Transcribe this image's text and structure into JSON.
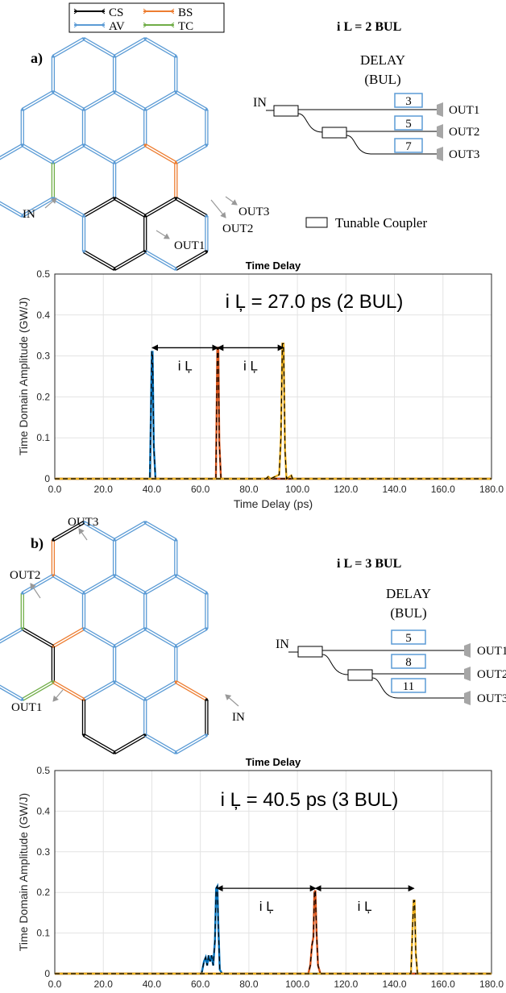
{
  "legend": {
    "items": [
      {
        "label": "CS",
        "color": "#000000"
      },
      {
        "label": "BS",
        "color": "#ED7D31"
      },
      {
        "label": "AV",
        "color": "#5B9BD5"
      },
      {
        "label": "TC",
        "color": "#70AD47"
      }
    ]
  },
  "panel_a": {
    "label": "a)",
    "delay_title": "i L = 2 BUL",
    "delay_header": "DELAY",
    "delay_unit": "(BUL)",
    "input_label": "IN",
    "delays": [
      "3",
      "5",
      "7"
    ],
    "outputs": [
      "OUT1",
      "OUT2",
      "OUT3"
    ],
    "mesh_labels": {
      "in": "IN",
      "out1": "OUT1",
      "out2": "OUT2",
      "out3": "OUT3"
    },
    "coupler_legend": "Tunable Coupler"
  },
  "panel_b": {
    "label": "b)",
    "delay_title": "i L = 3 BUL",
    "delay_header": "DELAY",
    "delay_unit": "(BUL)",
    "input_label": "IN",
    "delays": [
      "5",
      "8",
      "11"
    ],
    "outputs": [
      "OUT1",
      "OUT2",
      "OUT3"
    ],
    "mesh_labels": {
      "in": "IN",
      "out1": "OUT1",
      "out2": "OUT2",
      "out3": "OUT3"
    }
  },
  "colors": {
    "blue": "#0072BD",
    "orange": "#D95319",
    "yellow": "#EDB120",
    "mesh_blue": "#5B9BD5",
    "mesh_orange": "#ED7D31",
    "mesh_green": "#70AD47",
    "box_blue": "#5B9BD5"
  },
  "chart_data": [
    {
      "type": "line",
      "title": "Time Delay",
      "xlabel": "Time Delay (ps)",
      "ylabel": "Time Domain Amplitude (GW/J)",
      "xlim": [
        0,
        180
      ],
      "ylim": [
        0,
        0.5
      ],
      "xticks": [
        "0.0",
        "20.0",
        "40.0",
        "60.0",
        "80.0",
        "100.0",
        "120.0",
        "140.0",
        "160.0",
        "180.0"
      ],
      "yticks": [
        "0",
        "0.1",
        "0.2",
        "0.3",
        "0.4",
        "0.5"
      ],
      "grid": true,
      "annotation": "i Ļ = 27.0 ps (2 BUL)",
      "interval_labels": [
        "i Ļ",
        "i Ļ"
      ],
      "arrows": [
        [
          40.2,
          67.2,
          0.32
        ],
        [
          67.2,
          94.2,
          0.32
        ]
      ],
      "series": [
        {
          "color": "blue",
          "points": [
            [
              39.2,
              0
            ],
            [
              40.0,
              0.31
            ],
            [
              40.3,
              0.31
            ],
            [
              40.8,
              0.08
            ],
            [
              41.5,
              0
            ]
          ]
        },
        {
          "color": "orange",
          "points": [
            [
              66.4,
              0
            ],
            [
              67.0,
              0.32
            ],
            [
              67.4,
              0.32
            ],
            [
              67.8,
              0.09
            ],
            [
              68.5,
              0
            ]
          ]
        },
        {
          "color": "yellow",
          "points": [
            [
              87.0,
              0
            ],
            [
              88.0,
              0.005
            ],
            [
              89.0,
              0
            ],
            [
              92.5,
              0.01
            ],
            [
              93.2,
              0.1
            ],
            [
              93.8,
              0.33
            ],
            [
              94.3,
              0.33
            ],
            [
              94.9,
              0.07
            ],
            [
              95.5,
              0
            ],
            [
              97.5,
              0.008
            ],
            [
              98.0,
              0
            ]
          ]
        }
      ]
    },
    {
      "type": "line",
      "title": "Time Delay",
      "xlabel": "Time Delay (ps)",
      "ylabel": "Time Domain Amplitude (GW/J)",
      "xlim": [
        0,
        180
      ],
      "ylim": [
        0,
        0.5
      ],
      "xticks": [
        "0.0",
        "20.0",
        "40.0",
        "60.0",
        "80.0",
        "100.0",
        "120.0",
        "140.0",
        "160.0",
        "180.0"
      ],
      "yticks": [
        "0",
        "0.1",
        "0.2",
        "0.3",
        "0.4",
        "0.5"
      ],
      "grid": true,
      "annotation": "i Ļ = 40.5 ps (3 BUL)",
      "interval_labels": [
        "i Ļ",
        "i Ļ"
      ],
      "arrows": [
        [
          67.0,
          107.5,
          0.21
        ],
        [
          107.5,
          148.0,
          0.21
        ]
      ],
      "series": [
        {
          "color": "blue",
          "points": [
            [
              60.5,
              0
            ],
            [
              61.5,
              0.03
            ],
            [
              62.2,
              0.04
            ],
            [
              62.8,
              0.02
            ],
            [
              63.4,
              0.045
            ],
            [
              64.0,
              0.03
            ],
            [
              64.6,
              0.045
            ],
            [
              65.3,
              0.02
            ],
            [
              66.0,
              0.08
            ],
            [
              66.5,
              0.21
            ],
            [
              67.0,
              0.215
            ],
            [
              67.4,
              0.12
            ],
            [
              68.0,
              0.01
            ],
            [
              69.0,
              0
            ]
          ]
        },
        {
          "color": "orange",
          "points": [
            [
              104.5,
              0
            ],
            [
              105.3,
              0.02
            ],
            [
              106.0,
              0.07
            ],
            [
              106.6,
              0.09
            ],
            [
              107.0,
              0.2
            ],
            [
              107.4,
              0.205
            ],
            [
              107.9,
              0.1
            ],
            [
              108.5,
              0.02
            ],
            [
              109.5,
              0
            ]
          ]
        },
        {
          "color": "yellow",
          "points": [
            [
              146.8,
              0
            ],
            [
              147.5,
              0.12
            ],
            [
              147.9,
              0.18
            ],
            [
              148.3,
              0.18
            ],
            [
              148.8,
              0.05
            ],
            [
              149.5,
              0
            ]
          ]
        }
      ]
    }
  ]
}
